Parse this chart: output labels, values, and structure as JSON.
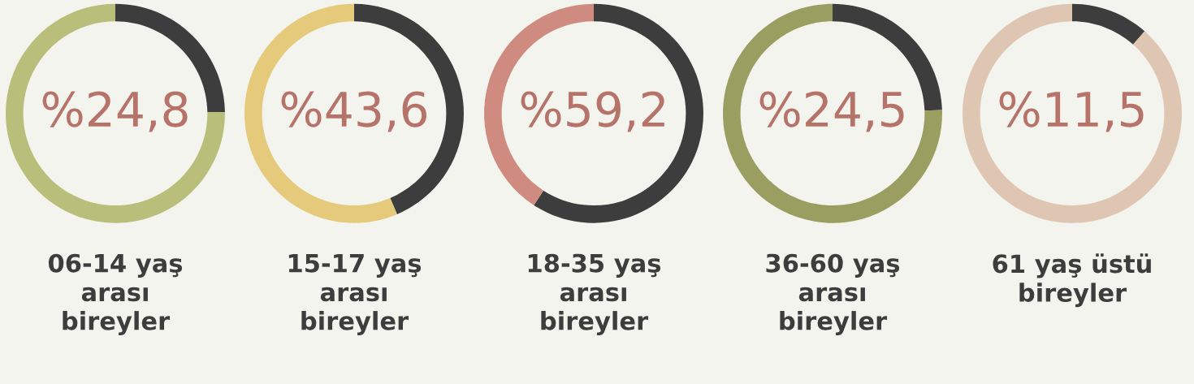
{
  "chart_data": [
    {
      "type": "donut",
      "title": "06-14 yaş\narası\nbireyler",
      "categories": [
        null,
        null
      ],
      "values": [
        24.8,
        75.2
      ],
      "colors": [
        "#3d3d3d",
        "#b9bf7a"
      ],
      "annotations": [
        "%24,8"
      ]
    },
    {
      "type": "donut",
      "title": "15-17 yaş\narası\nbireyler",
      "categories": [
        null,
        null
      ],
      "values": [
        43.6,
        56.4
      ],
      "colors": [
        "#3d3d3d",
        "#e5ca7c"
      ],
      "annotations": [
        "%43,6"
      ]
    },
    {
      "type": "donut",
      "title": "18-35 yaş\narası\nbireyler",
      "categories": [
        null,
        null
      ],
      "values": [
        59.2,
        40.8
      ],
      "colors": [
        "#3d3d3d",
        "#d08b80"
      ],
      "annotations": [
        "%59,2"
      ]
    },
    {
      "type": "donut",
      "title": "36-60 yaş\narası\nbireyler",
      "categories": [
        null,
        null
      ],
      "values": [
        24.5,
        75.5
      ],
      "colors": [
        "#3d3d3d",
        "#9a9e60"
      ],
      "annotations": [
        "%24,5"
      ]
    },
    {
      "type": "donut",
      "title": "61 yaş üstü\nbireyler",
      "categories": [
        null,
        null
      ],
      "values": [
        11.5,
        88.5
      ],
      "colors": [
        "#3d3d3d",
        "#dfc6b2"
      ],
      "annotations": [
        "%11,5"
      ]
    }
  ]
}
